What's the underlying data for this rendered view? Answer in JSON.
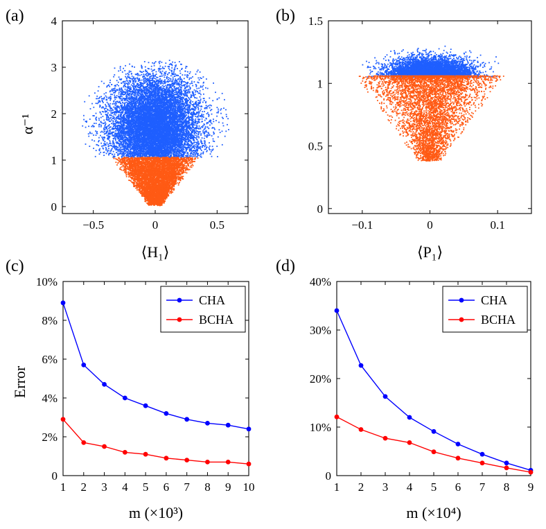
{
  "colors": {
    "scatter_blue": "#1f5fff",
    "scatter_orange": "#ff5a14",
    "line_blue": "#0000ff",
    "line_red": "#ff0000"
  },
  "panels": {
    "a": "(a)",
    "b": "(b)",
    "c": "(c)",
    "d": "(d)"
  },
  "chart_data": [
    {
      "id": "a",
      "type": "scatter",
      "title": "",
      "xlabel": "⟨H₁⟩",
      "ylabel": "α⁻¹",
      "xlim": [
        -0.75,
        0.75
      ],
      "ylim": [
        -0.15,
        4
      ],
      "xticks": [
        -0.5,
        0,
        0.5
      ],
      "xtick_labels": [
        "−0.5",
        "0",
        "0.5"
      ],
      "yticks": [
        0,
        1,
        2,
        3,
        4
      ],
      "ytick_labels": [
        "0",
        "1",
        "2",
        "3",
        "4"
      ],
      "series": [
        {
          "name": "alpha_inv_above_1",
          "color": "#1f5fff",
          "description": "dense cloud, x spread ±0.6, y from 1.05 to ~3.15, centered near (0, 1.7)"
        },
        {
          "name": "alpha_inv_below_1",
          "color": "#ff5a14",
          "description": "V-shaped wedge, y from 0 to 1.05, |x| up to ~0.32 at y=1"
        }
      ]
    },
    {
      "id": "b",
      "type": "scatter",
      "title": "",
      "xlabel": "⟨P₁⟩",
      "ylabel": "",
      "xlim": [
        -0.15,
        0.15
      ],
      "ylim": [
        -0.04,
        1.5
      ],
      "xticks": [
        -0.1,
        0,
        0.1
      ],
      "xtick_labels": [
        "−0.1",
        "0",
        "0.1"
      ],
      "yticks": [
        0,
        0.5,
        1,
        1.5
      ],
      "ytick_labels": [
        "0",
        "0.5",
        "1",
        "1.5"
      ],
      "series": [
        {
          "name": "alpha_inv_above_1",
          "color": "#1f5fff",
          "description": "thin band y from 1.05 to ~1.3, x spread ±0.1"
        },
        {
          "name": "alpha_inv_below_1",
          "color": "#ff5a14",
          "description": "inverted triangle y from ~0.37 to 1.05, x up to ±0.1 at top"
        }
      ]
    },
    {
      "id": "c",
      "type": "line",
      "title": "",
      "xlabel": "m (×10³)",
      "ylabel": "Error",
      "xlim": [
        1,
        10
      ],
      "ylim": [
        0,
        10
      ],
      "x": [
        1,
        2,
        3,
        4,
        5,
        6,
        7,
        8,
        9,
        10
      ],
      "xtick_labels": [
        "1",
        "2",
        "3",
        "4",
        "5",
        "6",
        "7",
        "8",
        "9",
        "10"
      ],
      "yticks": [
        0,
        2,
        4,
        6,
        8,
        10
      ],
      "ytick_labels": [
        "0",
        "2%",
        "4%",
        "6%",
        "8%",
        "10%"
      ],
      "legend_position": "top-right",
      "series": [
        {
          "name": "CHA",
          "color": "#0000ff",
          "values": [
            8.9,
            5.7,
            4.7,
            4.0,
            3.6,
            3.2,
            2.9,
            2.7,
            2.6,
            2.4
          ]
        },
        {
          "name": "BCHA",
          "color": "#ff0000",
          "values": [
            2.9,
            1.7,
            1.5,
            1.2,
            1.1,
            0.9,
            0.8,
            0.7,
            0.7,
            0.6
          ]
        }
      ]
    },
    {
      "id": "d",
      "type": "line",
      "title": "",
      "xlabel": "m (×10⁴)",
      "ylabel": "",
      "xlim": [
        1,
        9
      ],
      "ylim": [
        0,
        40
      ],
      "x": [
        1,
        2,
        3,
        4,
        5,
        6,
        7,
        8,
        9
      ],
      "xtick_labels": [
        "1",
        "2",
        "3",
        "4",
        "5",
        "6",
        "7",
        "8",
        "9"
      ],
      "yticks": [
        0,
        10,
        20,
        30,
        40
      ],
      "ytick_labels": [
        "0",
        "10%",
        "20%",
        "30%",
        "40%"
      ],
      "legend_position": "top-right",
      "series": [
        {
          "name": "CHA",
          "color": "#0000ff",
          "values": [
            34.0,
            22.7,
            16.3,
            12.0,
            9.1,
            6.5,
            4.4,
            2.6,
            1.1
          ]
        },
        {
          "name": "BCHA",
          "color": "#ff0000",
          "values": [
            12.1,
            9.5,
            7.7,
            6.8,
            4.9,
            3.6,
            2.6,
            1.6,
            0.7
          ]
        }
      ]
    }
  ]
}
